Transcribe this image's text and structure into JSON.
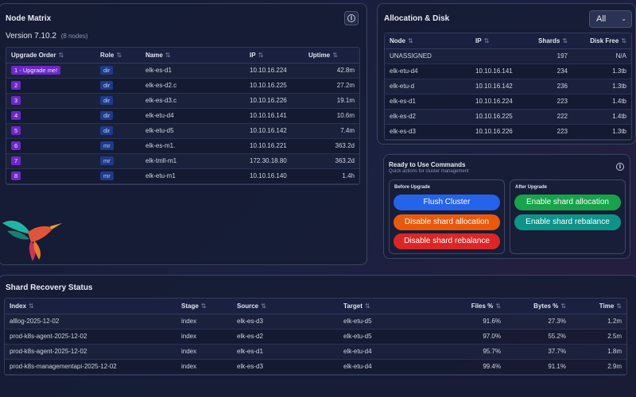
{
  "node_matrix": {
    "title": "Node Matrix",
    "version": "Version 7.10.2",
    "node_count": "(8 nodes)",
    "columns": [
      "Upgrade Order",
      "Role",
      "Name",
      "IP",
      "Uptime"
    ],
    "rows": [
      {
        "order": "1 - Upgrade me!",
        "role": "dir",
        "name": "elk-es-d1",
        "ip": "10.10.16.224",
        "uptime": "42.8m"
      },
      {
        "order": "2",
        "role": "dir",
        "name": "elk-es-d2.c",
        "ip": "10.10.16.225",
        "uptime": "27.2m"
      },
      {
        "order": "3",
        "role": "dir",
        "name": "elk-es-d3.c",
        "ip": "10.10.16.226",
        "uptime": "19.1m"
      },
      {
        "order": "4",
        "role": "dir",
        "name": "elk-etu-d4",
        "ip": "10.10.16.141",
        "uptime": "10.6m"
      },
      {
        "order": "5",
        "role": "dir",
        "name": "elk-etu-d5",
        "ip": "10.10.16.142",
        "uptime": "7.4m"
      },
      {
        "order": "6",
        "role": "mr",
        "name": "elk-es-m1.",
        "ip": "10.10.16.221",
        "uptime": "363.2d"
      },
      {
        "order": "7",
        "role": "mr",
        "name": "elk-tmll-m1",
        "ip": "172.30.18.80",
        "uptime": "363.2d"
      },
      {
        "order": "8",
        "role": "mr",
        "name": "elk-etu-m1",
        "ip": "10.10.16.140",
        "uptime": "1.4h"
      }
    ]
  },
  "allocation": {
    "title": "Allocation & Disk",
    "filter_value": "All",
    "columns": [
      "Node",
      "IP",
      "Shards",
      "Disk Free"
    ],
    "rows": [
      {
        "node": "UNASSIGNED",
        "ip": "",
        "shards": "197",
        "disk": "N/A"
      },
      {
        "node": "elk-etu-d4",
        "ip": "10.10.16.141",
        "shards": "234",
        "disk": "1.3tb"
      },
      {
        "node": "elk-etu-d",
        "ip": "10.10.16.142",
        "shards": "236",
        "disk": "1.3tb"
      },
      {
        "node": "elk-es-d1",
        "ip": "10.10.16.224",
        "shards": "223",
        "disk": "1.4tb"
      },
      {
        "node": "elk-es-d2",
        "ip": "10.10.16.225",
        "shards": "222",
        "disk": "1.4tb"
      },
      {
        "node": "elk-es-d3",
        "ip": "10.10.16.226",
        "shards": "223",
        "disk": "1.3tb"
      }
    ]
  },
  "commands": {
    "title": "Ready to Use Commands",
    "subtitle": "Quick actions for cluster management",
    "before_label": "Before Upgrade",
    "after_label": "After Upgrade",
    "before": [
      {
        "label": "Flush Cluster",
        "color": "#2563eb"
      },
      {
        "label": "Disable shard allocation",
        "color": "#ea580c"
      },
      {
        "label": "Disable shard rebalance",
        "color": "#dc2626"
      }
    ],
    "after": [
      {
        "label": "Enable shard allocation",
        "color": "#16a34a"
      },
      {
        "label": "Enable shard rebalance",
        "color": "#0d9488"
      }
    ]
  },
  "recovery": {
    "title": "Shard Recovery Status",
    "columns": [
      "Index",
      "Stage",
      "Source",
      "Target",
      "Files %",
      "Bytes %",
      "Time"
    ],
    "rows": [
      {
        "index": "alllog-2025-12-02",
        "stage": "index",
        "source": "elk-es-d3",
        "target": "elk-etu-d5",
        "files": "91.6%",
        "bytes": "27.3%",
        "time": "1.2m"
      },
      {
        "index": "prod-k8s-agent-2025-12-02",
        "stage": "index",
        "source": "elk-es-d2",
        "target": "elk-etu-d5",
        "files": "97.0%",
        "bytes": "55.2%",
        "time": "2.5m"
      },
      {
        "index": "prod-k8s-agent-2025-12-02",
        "stage": "index",
        "source": "elk-es-d1",
        "target": "elk-etu-d4",
        "files": "95.7%",
        "bytes": "37.7%",
        "time": "1.8m"
      },
      {
        "index": "prod-k8s-managementapi-2025-12-02",
        "stage": "index",
        "source": "elk-es-d3",
        "target": "elk-etu-d4",
        "files": "99.4%",
        "bytes": "91.1%",
        "time": "2.9m"
      }
    ]
  }
}
